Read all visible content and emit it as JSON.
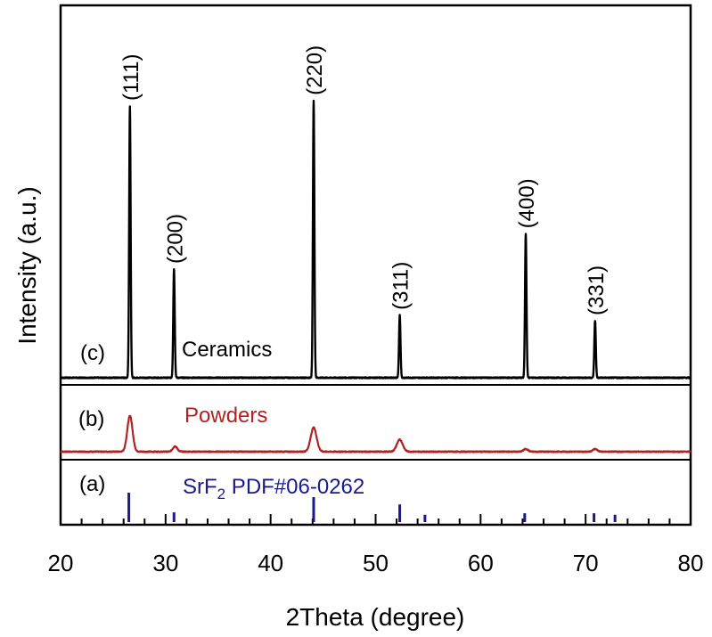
{
  "chart_data": {
    "type": "line",
    "xlabel": "2Theta (degree)",
    "ylabel": "Intensity (a.u.)",
    "xlim": [
      20,
      80
    ],
    "xticks": [
      "20",
      "30",
      "40",
      "50",
      "60",
      "70",
      "80"
    ],
    "panels": [
      {
        "label": "(c)",
        "name": "Ceramics",
        "color": "#000000",
        "baseline": 0,
        "peaks": [
          {
            "hkl": "(111)",
            "x": 26.6,
            "y": 100,
            "w": 0.1
          },
          {
            "hkl": "(200)",
            "x": 30.8,
            "y": 40,
            "w": 0.1
          },
          {
            "hkl": "(220)",
            "x": 44.1,
            "y": 102,
            "w": 0.1
          },
          {
            "hkl": "(311)",
            "x": 52.3,
            "y": 23,
            "w": 0.1
          },
          {
            "hkl": "(400)",
            "x": 64.3,
            "y": 53,
            "w": 0.1
          },
          {
            "hkl": "(331)",
            "x": 70.9,
            "y": 21,
            "w": 0.1
          }
        ]
      },
      {
        "label": "(b)",
        "name": "Powders",
        "color": "#b22222",
        "baseline": 0,
        "peaks": [
          {
            "x": 26.6,
            "y": 13.5,
            "w": 0.35
          },
          {
            "x": 30.9,
            "y": 2,
            "w": 0.3
          },
          {
            "x": 44.1,
            "y": 9,
            "w": 0.4
          },
          {
            "x": 52.3,
            "y": 4.5,
            "w": 0.4
          },
          {
            "x": 64.3,
            "y": 1,
            "w": 0.3
          },
          {
            "x": 70.9,
            "y": 1,
            "w": 0.3
          }
        ]
      },
      {
        "label": "(a)",
        "name_main": "SrF",
        "name_sub": "2",
        "name_rest": " PDF#06-0262",
        "color": "#1a1a8c",
        "sticks": [
          {
            "x": 26.5,
            "y": 100
          },
          {
            "x": 30.8,
            "y": 33
          },
          {
            "x": 44.1,
            "y": 85
          },
          {
            "x": 52.3,
            "y": 60
          },
          {
            "x": 54.7,
            "y": 25
          },
          {
            "x": 64.2,
            "y": 30
          },
          {
            "x": 70.8,
            "y": 30
          },
          {
            "x": 72.8,
            "y": 25
          }
        ]
      }
    ]
  }
}
